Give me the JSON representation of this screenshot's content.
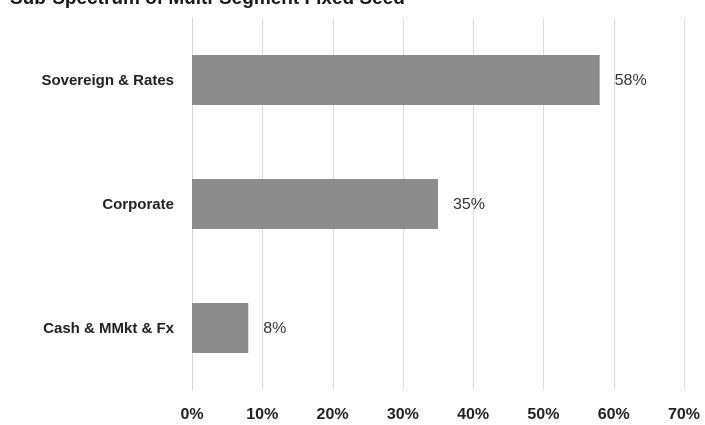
{
  "chart_data": {
    "type": "bar",
    "orientation": "horizontal",
    "title": "Sub-Spectrum of Multi-Segment Fixed Seed",
    "categories": [
      "Sovereign & Rates",
      "Corporate",
      "Cash & MMkt & Fx"
    ],
    "values": [
      58,
      35,
      8
    ],
    "data_labels": [
      "58%",
      "35%",
      "8%"
    ],
    "xlim": [
      0,
      70
    ],
    "x_ticks": [
      0,
      10,
      20,
      30,
      40,
      50,
      60,
      70
    ],
    "x_tick_labels": [
      "0%",
      "10%",
      "20%",
      "30%",
      "40%",
      "50%",
      "60%",
      "70%"
    ],
    "xlabel": "",
    "ylabel": "",
    "grid": true,
    "legend": "none",
    "bar_color": "#8c8c8c"
  }
}
